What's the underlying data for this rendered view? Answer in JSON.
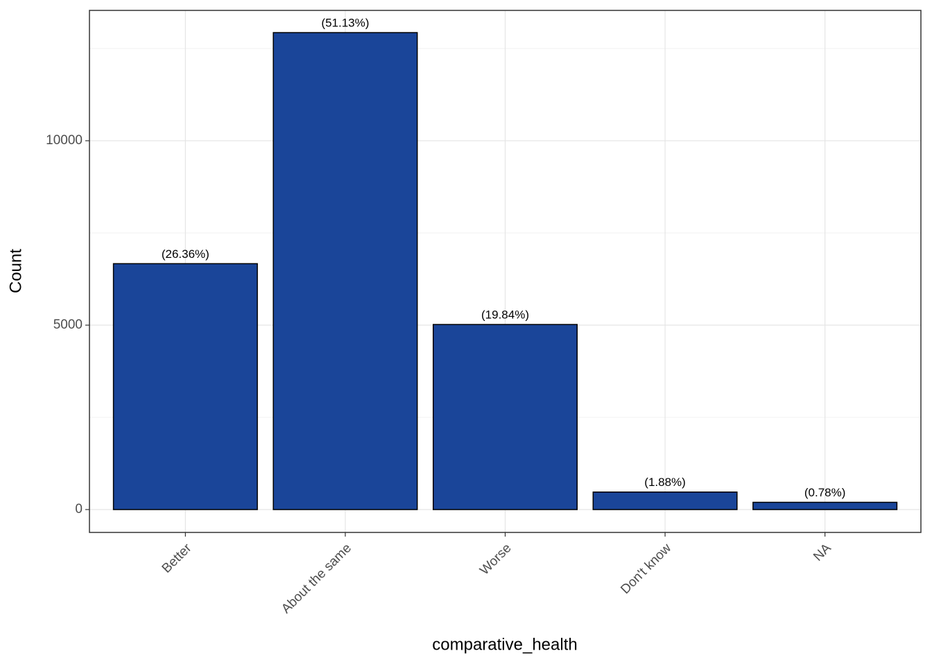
{
  "chart_data": {
    "type": "bar",
    "x_label": "comparative_health",
    "y_label": "Count",
    "categories": [
      "Better",
      "About the same",
      "Worse",
      "Don't know",
      "NA"
    ],
    "values": [
      6667,
      12932,
      5018,
      475,
      197
    ],
    "data_labels": [
      "(26.36%)",
      "(51.13%)",
      "(19.84%)",
      "(1.88%)",
      "(0.78%)"
    ],
    "color": "#1a4599",
    "ylim": [
      -620,
      13534
    ],
    "yticks": [
      0,
      5000,
      10000
    ],
    "minor_yticks": [
      2500,
      7500,
      12500
    ],
    "grid": true
  }
}
